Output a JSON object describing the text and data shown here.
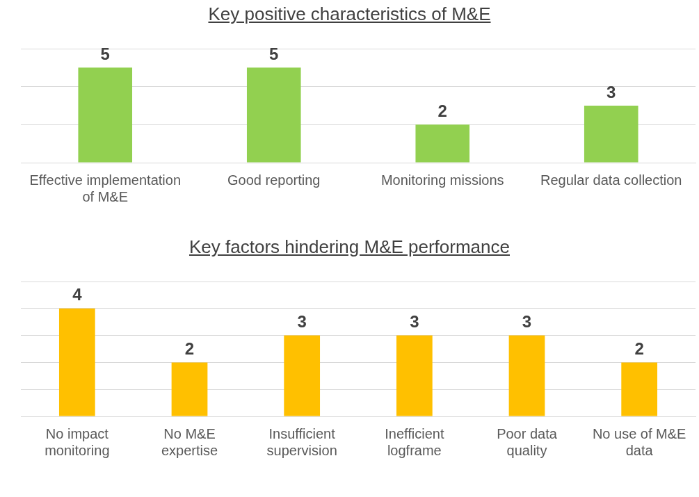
{
  "chart_data": [
    {
      "type": "bar",
      "title": "Key positive characteristics of M&E",
      "categories": [
        "Effective implementation of M&E",
        "Good reporting",
        "Monitoring missions",
        "Regular data collection"
      ],
      "values": [
        5,
        5,
        2,
        3
      ],
      "color": "#92d050",
      "ylim": [
        0,
        6
      ],
      "yticks": [
        0,
        2,
        4,
        6
      ],
      "grid": "y",
      "tick_labels": "x",
      "data_labels": true
    },
    {
      "type": "bar",
      "title": "Key factors hindering M&E performance",
      "categories": [
        "No impact monitoring",
        "No M&E expertise",
        "Insufficient supervision",
        "Inefficient logframe",
        "Poor data quality",
        "No use of M&E data"
      ],
      "values": [
        4,
        2,
        3,
        3,
        3,
        2
      ],
      "color": "#ffc000",
      "ylim": [
        0,
        5
      ],
      "yticks": [
        0,
        1,
        2,
        3,
        4,
        5
      ],
      "grid": "y",
      "tick_labels": "x",
      "data_labels": true
    }
  ]
}
